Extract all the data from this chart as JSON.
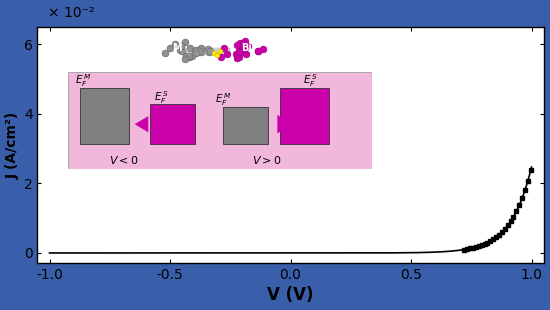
{
  "xlabel": "V (V)",
  "ylabel": "J (A/cm²)",
  "xlim": [
    -1.05,
    1.05
  ],
  "ylim": [
    -0.003,
    0.065
  ],
  "ytick_vals": [
    0.0,
    0.02,
    0.04,
    0.06
  ],
  "ytick_labels": [
    "0",
    "2",
    "4",
    "6"
  ],
  "xtick_vals": [
    -1.0,
    -0.5,
    0.0,
    0.5,
    1.0
  ],
  "xtick_labels": [
    "-1.0",
    "-0.5",
    "0.0",
    "0.5",
    "1.0"
  ],
  "scale_label": "× 10⁻²",
  "outer_bg": "#3a5faa",
  "plot_bg": "#ffffff",
  "curve_color": "#000000",
  "J0": 2.5e-07,
  "n_ideality": 11.5,
  "inset_bg": "#f2b8dc",
  "gray_color": "#808080",
  "magenta_color": "#cc00aa",
  "arrow_color": "#cc00aa"
}
